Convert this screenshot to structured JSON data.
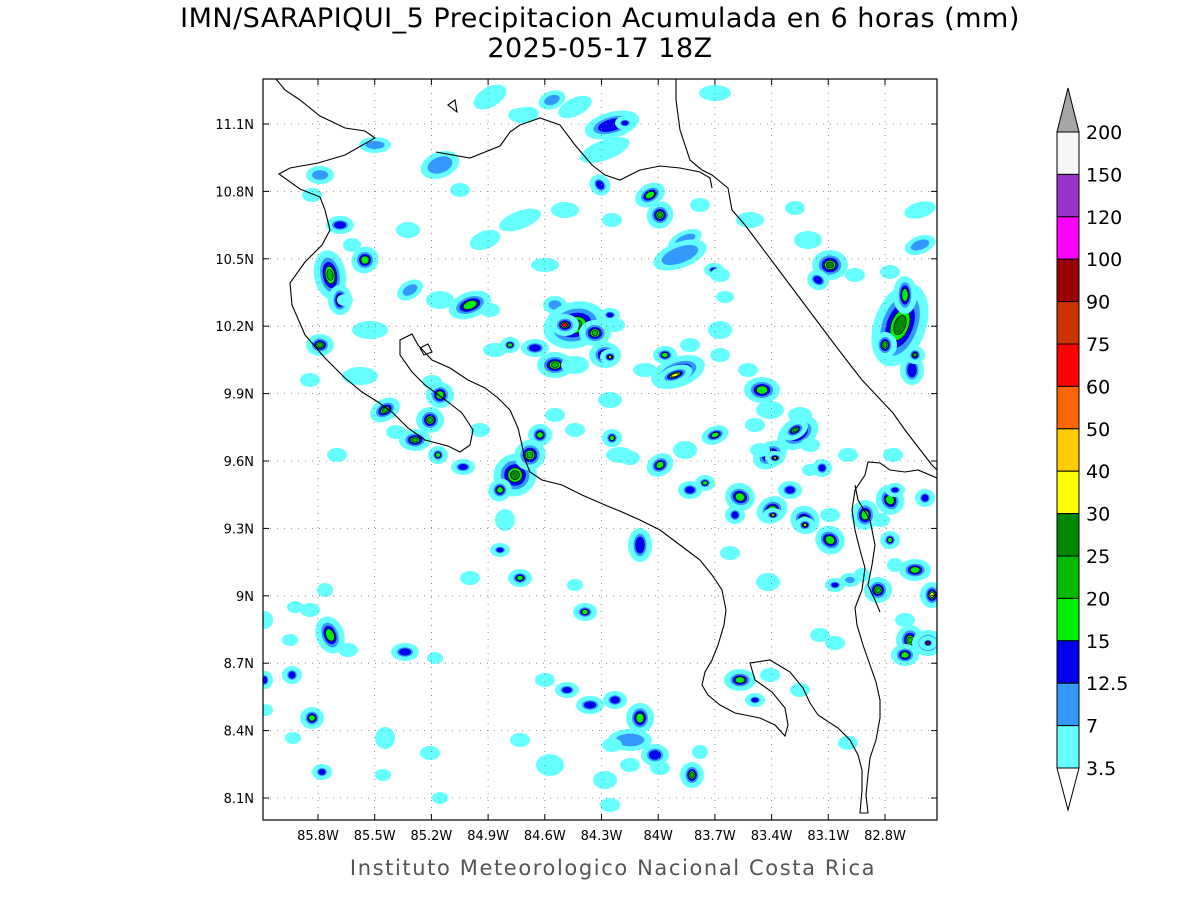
{
  "title": {
    "line1": "IMN/SARAPIQUI_5 Precipitacion Acumulada en 6 horas (mm)",
    "line2": "2025-05-17 18Z"
  },
  "footer": "Instituto Meteorologico Nacional Costa Rica",
  "axes": {
    "x_ticks": [
      {
        "lon": -85.8,
        "label": "85.8W"
      },
      {
        "lon": -85.5,
        "label": "85.5W"
      },
      {
        "lon": -85.2,
        "label": "85.2W"
      },
      {
        "lon": -84.9,
        "label": "84.9W"
      },
      {
        "lon": -84.6,
        "label": "84.6W"
      },
      {
        "lon": -84.3,
        "label": "84.3W"
      },
      {
        "lon": -84.0,
        "label": "84W"
      },
      {
        "lon": -83.7,
        "label": "83.7W"
      },
      {
        "lon": -83.4,
        "label": "83.4W"
      },
      {
        "lon": -83.1,
        "label": "83.1W"
      },
      {
        "lon": -82.8,
        "label": "82.8W"
      }
    ],
    "y_ticks": [
      {
        "lat": 11.1,
        "label": "11.1N"
      },
      {
        "lat": 10.8,
        "label": "10.8N"
      },
      {
        "lat": 10.5,
        "label": "10.5N"
      },
      {
        "lat": 10.2,
        "label": "10.2N"
      },
      {
        "lat": 9.9,
        "label": "9.9N"
      },
      {
        "lat": 9.6,
        "label": "9.6N"
      },
      {
        "lat": 9.3,
        "label": "9.3N"
      },
      {
        "lat": 9.0,
        "label": "9N"
      },
      {
        "lat": 8.7,
        "label": "8.7N"
      },
      {
        "lat": 8.4,
        "label": "8.4N"
      },
      {
        "lat": 8.1,
        "label": "8.1N"
      }
    ]
  },
  "legend": {
    "top_value": "200",
    "bins": [
      {
        "label": "150",
        "color": "#f5f5f5"
      },
      {
        "label": "120",
        "color": "#9933cc"
      },
      {
        "label": "100",
        "color": "#ff00ff"
      },
      {
        "label": "90",
        "color": "#990000"
      },
      {
        "label": "75",
        "color": "#cc3300"
      },
      {
        "label": "60",
        "color": "#ff0000"
      },
      {
        "label": "50",
        "color": "#ff6600"
      },
      {
        "label": "40",
        "color": "#ffcc00"
      },
      {
        "label": "30",
        "color": "#ffff00"
      },
      {
        "label": "25",
        "color": "#008800"
      },
      {
        "label": "20",
        "color": "#00bb00"
      },
      {
        "label": "15",
        "color": "#00ee00"
      },
      {
        "label": "12.5",
        "color": "#0000ee"
      },
      {
        "label": "7",
        "color": "#3399ff"
      },
      {
        "label": "3.5",
        "color": "#66ffff"
      }
    ],
    "top_triangle_color": "#a6a6a6",
    "bottom_triangle_color": "#ffffff"
  },
  "precip_colors": {
    "level_3_5": "#66ffff",
    "level_7": "#3399ff",
    "level_12_5": "#0000ee",
    "level_15": "#00ee00",
    "level_20": "#00bb00",
    "level_25": "#008800",
    "level_30": "#ffff00",
    "level_40": "#ffcc00",
    "level_60": "#ff0000"
  }
}
